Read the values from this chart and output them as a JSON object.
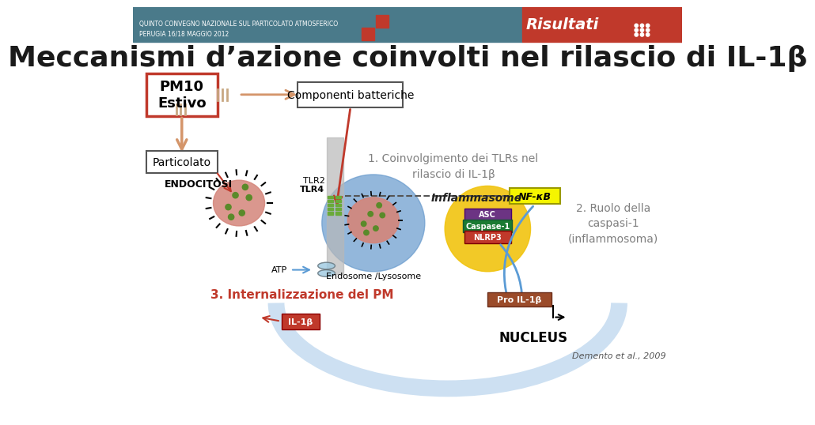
{
  "bg_color": "#ffffff",
  "header_color1": "#4a7a8a",
  "header_color2": "#c0392b",
  "header_text1_line1": "QUINTO CONVEGNO NAZIONALE SUL PARTICOLATO ATMOSFERICO",
  "header_text1_line2": "PERUGIA 16/18 MAGGIO 2012",
  "header_risultati": "Risultati",
  "title": "Meccanismi d’azione coinvolti nel rilascio di IL-1β",
  "title_color": "#1a1a1a",
  "pm10_label": "PM10\nEstivo",
  "componenti_label": "Componenti batteriche",
  "particolato_label": "Particolato",
  "endocitosi_label": "ENDOCITOSI",
  "tlr2_label": "TLR2",
  "tlr4_label": "TLR4",
  "nfkb_label": "NF-κB",
  "inflammasome_label": "Inflammasome",
  "asc_label": "ASC",
  "caspase_label": "Caspase-1",
  "nlrp3_label": "NLRP3",
  "atp_label": "ATP",
  "endosome_label": "Endosome /Lysosome",
  "point1_label": "1. Coinvolgimento dei TLRs nel\nrilascio di IL-1β",
  "point2_label": "2. Ruolo della\ncaspasi-1\n(inflammosoma)",
  "point3_label": "3. Internalizzazione del PM",
  "il1b_label": "IL-1β",
  "prolil1b_label": "Pro IL-1β",
  "nucleus_label": "NUCLEUS",
  "demento_label": "Demento et al., 2009",
  "red_color": "#c0392b",
  "orange_arrow_color": "#e8a87c",
  "yellow_color": "#f1c40f",
  "purple_color": "#6c3483",
  "green_color": "#27ae60",
  "blue_color": "#5b9bd5",
  "gray_text_color": "#808080",
  "dark_color": "#2c2c2c"
}
